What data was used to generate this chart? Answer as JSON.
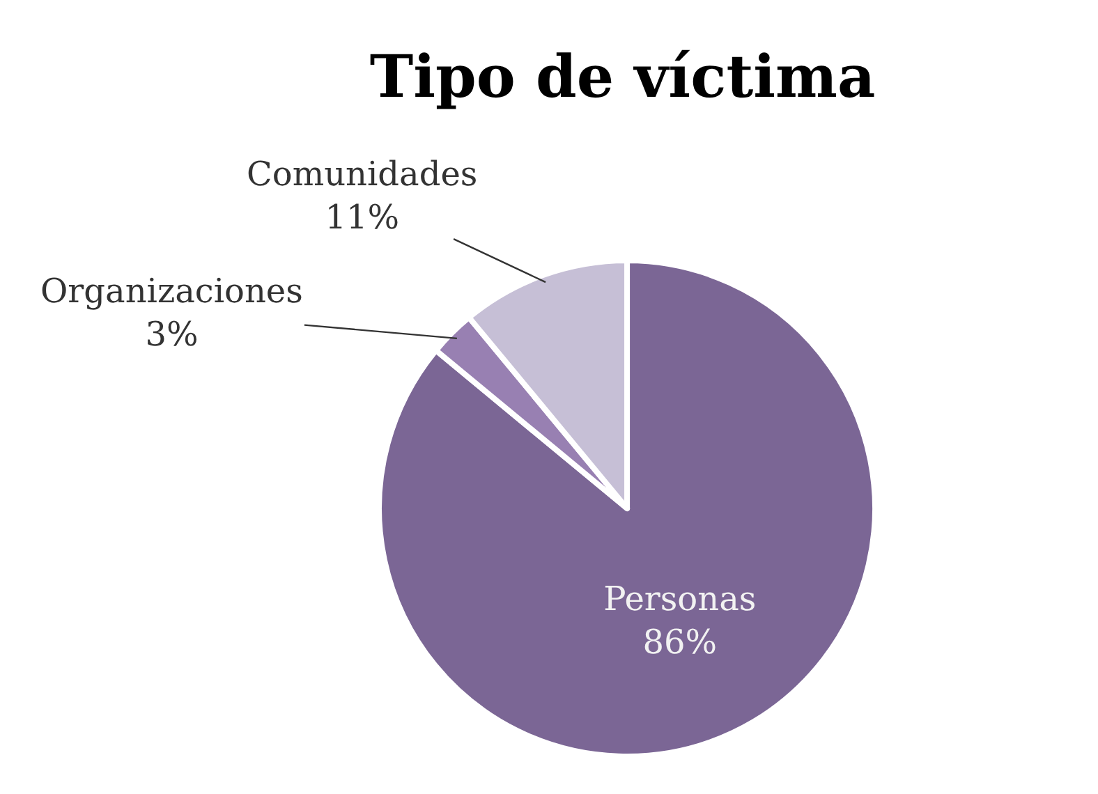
{
  "chart_data": {
    "type": "pie",
    "title": "Tipo de víctima",
    "categories": [
      "Personas",
      "Organizaciones",
      "Comunidades"
    ],
    "values": [
      86,
      3,
      11
    ],
    "value_labels": [
      "86%",
      "3%",
      "11%"
    ],
    "colors": [
      "#7b6695",
      "#9880b2",
      "#c6bfd6"
    ]
  }
}
